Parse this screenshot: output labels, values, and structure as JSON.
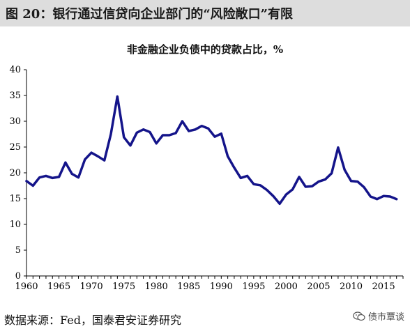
{
  "figure": {
    "title": "图 20：银行通过信贷向企业部门的“风险敞口”有限",
    "source": "数据来源：Fed，国泰君安证券研究",
    "watermark": "债市覃谈",
    "watermark_icon": "wechat-icon"
  },
  "chart_data": {
    "type": "line",
    "title": "非金融企业负债中的贷款占比，%",
    "xlabel": "",
    "ylabel": "",
    "xlim": [
      1960,
      2018
    ],
    "ylim": [
      0,
      40
    ],
    "x_ticks": [
      1960,
      1965,
      1970,
      1975,
      1980,
      1985,
      1990,
      1995,
      2000,
      2005,
      2010,
      2015
    ],
    "y_ticks": [
      0,
      5,
      10,
      15,
      20,
      25,
      30,
      35,
      40
    ],
    "grid": false,
    "line_color": "#14148a",
    "series": [
      {
        "x": [
          1960,
          1961,
          1962,
          1963,
          1964,
          1965,
          1966,
          1967,
          1968,
          1969,
          1970,
          1971,
          1972,
          1973,
          1974,
          1975,
          1976,
          1977,
          1978,
          1979,
          1980,
          1981,
          1982,
          1983,
          1984,
          1985,
          1986,
          1987,
          1988,
          1989,
          1990,
          1991,
          1992,
          1993,
          1994,
          1995,
          1996,
          1997,
          1998,
          1999,
          2000,
          2001,
          2002,
          2003,
          2004,
          2005,
          2006,
          2007,
          2008,
          2009,
          2010,
          2011,
          2012,
          2013,
          2014,
          2015,
          2016,
          2017
        ],
        "y": [
          18.4,
          17.5,
          19.1,
          19.4,
          19.0,
          19.2,
          22.0,
          19.8,
          19.1,
          22.6,
          23.9,
          23.2,
          22.4,
          27.5,
          34.8,
          26.9,
          25.3,
          27.8,
          28.4,
          27.9,
          25.7,
          27.3,
          27.3,
          27.7,
          30.0,
          28.1,
          28.4,
          29.1,
          28.6,
          27.0,
          27.6,
          23.2,
          21.0,
          19.0,
          19.4,
          17.8,
          17.6,
          16.7,
          15.5,
          14.0,
          15.8,
          16.8,
          19.2,
          17.3,
          17.4,
          18.3,
          18.7,
          19.9,
          24.9,
          20.6,
          18.4,
          18.3,
          17.2,
          15.4,
          14.9,
          15.5,
          15.4,
          14.9
        ]
      }
    ]
  }
}
